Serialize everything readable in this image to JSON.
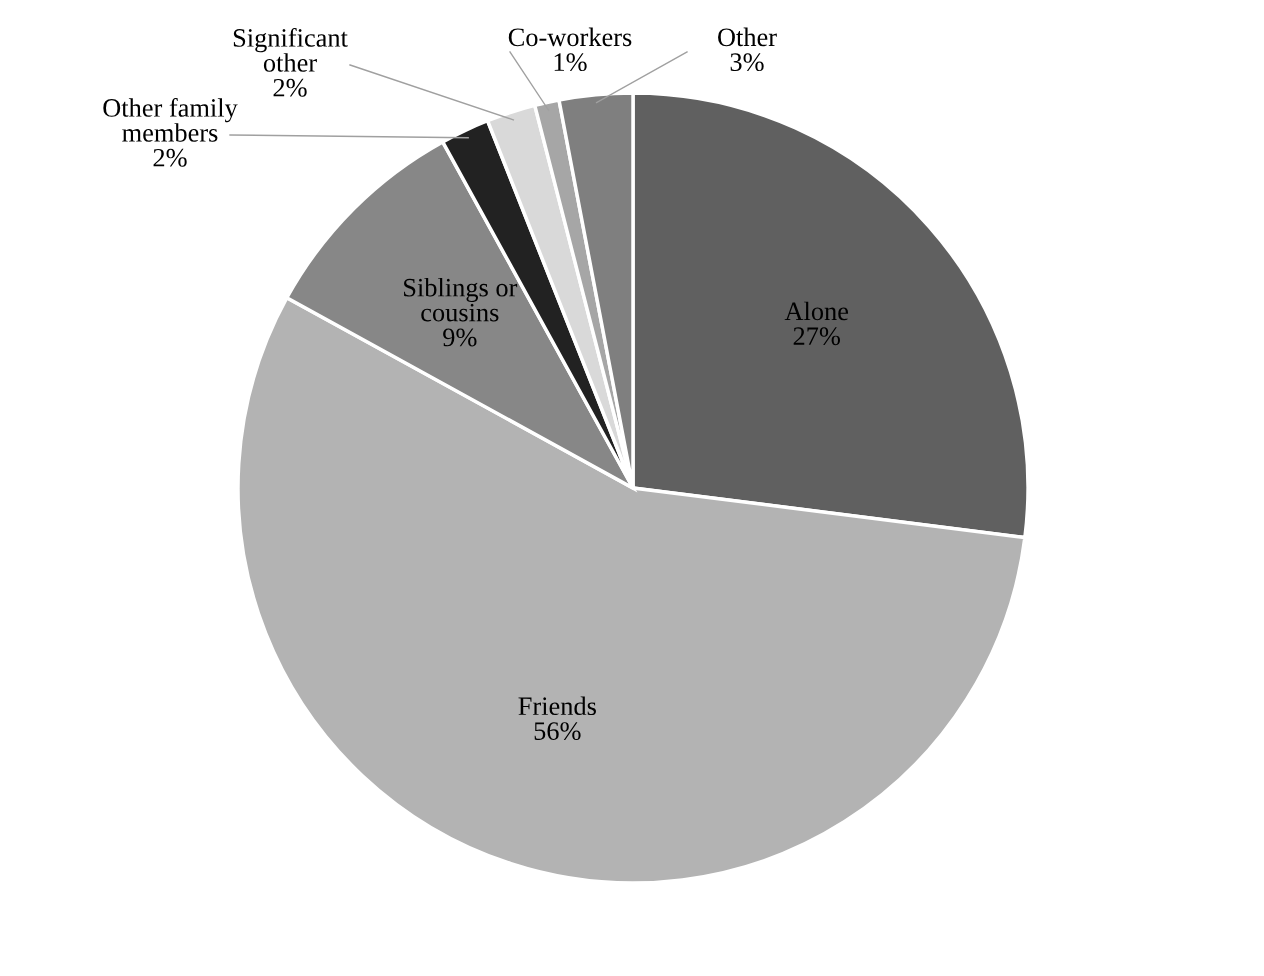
{
  "chart_data": {
    "type": "pie",
    "categories": [
      "Alone",
      "Friends",
      "Siblings or cousins",
      "Other family members",
      "Significant other",
      "Co-workers",
      "Other"
    ],
    "values": [
      27,
      56,
      9,
      2,
      2,
      1,
      3
    ],
    "value_labels": [
      "27%",
      "56%",
      "9%",
      "2%",
      "2%",
      "1%",
      "3%"
    ],
    "colors": [
      "#606060",
      "#b3b3b3",
      "#878787",
      "#222222",
      "#d9d9d9",
      "#a6a6a6",
      "#7f7f7f"
    ]
  }
}
